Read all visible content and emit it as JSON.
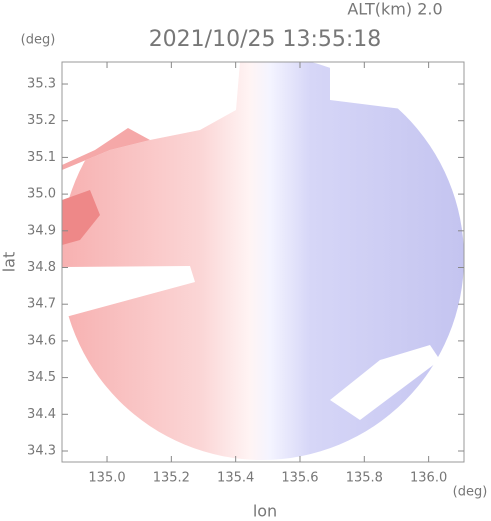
{
  "chart_data": {
    "type": "map",
    "annotation": "ALT(km) 2.0",
    "title": "2021/10/25 13:55:18",
    "y_unit": "(deg)",
    "x_unit": "(deg)",
    "xlabel": "lon",
    "ylabel": "lat",
    "xlim": [
      134.86,
      136.11
    ],
    "ylim": [
      34.27,
      35.36
    ],
    "xticks": [
      {
        "value": 135,
        "label": "135.0"
      },
      135.2,
      135.4,
      135.6,
      135.8,
      {
        "value": 136,
        "label": "136.0"
      }
    ],
    "yticks": [
      34.3,
      34.4,
      34.5,
      34.6,
      34.7,
      34.8,
      34.9,
      {
        "value": 35,
        "label": "35.0"
      },
      35.1,
      35.2,
      35.3
    ]
  }
}
